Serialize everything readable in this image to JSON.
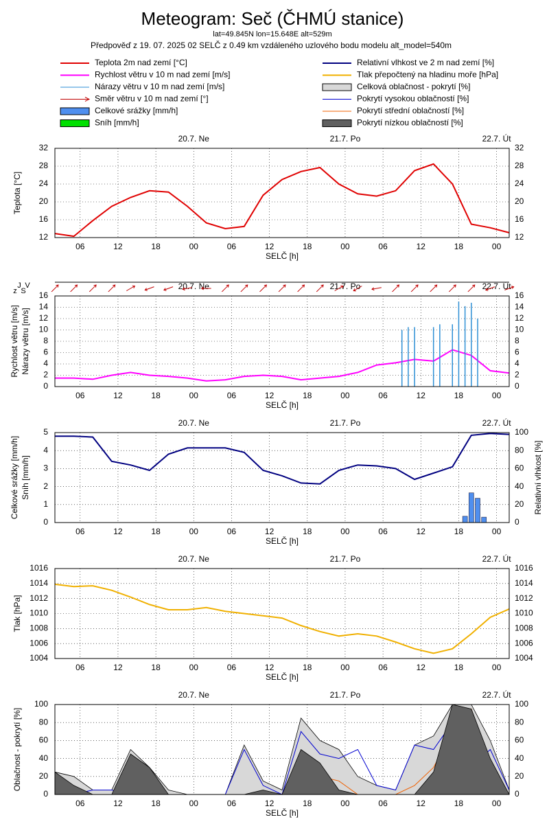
{
  "header": {
    "title": "Meteogram: Seč (ČHMÚ stanice)",
    "location": "lat=49.845N lon=15.648E alt=529m",
    "forecast": "Předpověď z 19. 07. 2025 02 SELČ z 0.49 km vzdáleného uzlového bodu modelu alt_model=540m"
  },
  "time_axis": {
    "xlim": [
      2,
      74
    ],
    "xlabel": "SELČ [h]",
    "xticks": [
      {
        "value": 6,
        "label": "06"
      },
      12,
      18,
      {
        "value": 24,
        "label": "00"
      },
      {
        "value": 30,
        "label": "06"
      },
      {
        "value": 36,
        "label": "12"
      },
      {
        "value": 42,
        "label": "18"
      },
      {
        "value": 48,
        "label": "00"
      },
      {
        "value": 54,
        "label": "06"
      },
      {
        "value": 60,
        "label": "12"
      },
      {
        "value": 66,
        "label": "18"
      },
      {
        "value": 72,
        "label": "00"
      }
    ],
    "days": [
      {
        "value": 24,
        "label": "20.7. Ne"
      },
      {
        "value": 48,
        "label": "21.7. Po"
      },
      {
        "value": 72,
        "label": "22.7. Út"
      }
    ],
    "x": [
      2,
      5,
      8,
      11,
      14,
      17,
      20,
      23,
      26,
      29,
      32,
      35,
      38,
      41,
      44,
      47,
      50,
      53,
      56,
      59,
      62,
      65,
      68,
      71,
      74
    ]
  },
  "chart_data": [
    {
      "type": "line",
      "ylabel": "Teplota [°C]",
      "ylim": [
        12,
        32
      ],
      "yticks": [
        12,
        16,
        20,
        24,
        28,
        32
      ],
      "mirror_y": true,
      "grid": true,
      "series": [
        {
          "name": "Teplota 2m nad zemí [°C]",
          "kind": "line",
          "color": "#e00000",
          "values": [
            12.9,
            12.3,
            15.8,
            19,
            21,
            22.5,
            22.2,
            19,
            15.3,
            14,
            14.5,
            21.5,
            25,
            26.8,
            27.7,
            24,
            21.8,
            21.3,
            22.5,
            27,
            28.5,
            24,
            15,
            14.2,
            13.1
          ]
        }
      ]
    },
    {
      "type": "line",
      "ylabel": "Rychlost větru [m/s]",
      "ylabel2": "Nárazy větru [m/s]",
      "direction_label": [
        "z",
        "J",
        "S",
        "V"
      ],
      "ylim": [
        0,
        16
      ],
      "yticks": [
        0,
        2,
        4,
        6,
        8,
        10,
        12,
        14,
        16
      ],
      "mirror_y": true,
      "grid": true,
      "series": [
        {
          "name": "Rychlost větru v 10 m nad zemí [m/s]",
          "kind": "line",
          "color": "#ff00ff",
          "values": [
            1.5,
            1.5,
            1.3,
            2,
            2.5,
            2,
            1.8,
            1.5,
            1,
            1.2,
            1.8,
            2,
            1.8,
            1.2,
            1.5,
            1.8,
            2.5,
            3.8,
            4.2,
            4.8,
            4.5,
            6.5,
            5.5,
            2.8,
            2.4
          ]
        },
        {
          "name": "Nárazy větru v 10 m nad zemí [m/s]",
          "kind": "spike",
          "color": "#2d8fd5",
          "x": [
            57,
            58,
            59,
            62,
            63,
            65,
            66,
            67,
            68,
            69
          ],
          "values": [
            10,
            10.5,
            10.5,
            10.5,
            11,
            11,
            15,
            14.2,
            14.8,
            12
          ]
        },
        {
          "name": "Směr větru v 10 m nad zemí [°]",
          "kind": "arrow",
          "color": "#c00000",
          "values": [
            225,
            225,
            225,
            225,
            240,
            70,
            70,
            80,
            90,
            225,
            225,
            225,
            225,
            225,
            225,
            240,
            60,
            80,
            225,
            225,
            225,
            225,
            225,
            70,
            250
          ]
        }
      ]
    },
    {
      "type": "line",
      "ylabel": "Celkové srážky [mm/h]",
      "ylabel2": "Sníh [mm/h]",
      "y2label": "Relativní vlhkost [%]",
      "ylim": [
        0,
        5
      ],
      "yticks": [
        0,
        1,
        2,
        3,
        4,
        5
      ],
      "y2lim": [
        0,
        100
      ],
      "y2ticks": [
        0,
        20,
        40,
        60,
        80,
        100
      ],
      "grid": true,
      "series": [
        {
          "name": "Celkové srážky [mm/h]",
          "kind": "bar",
          "color": "#4f8fef",
          "x": [
            67,
            68,
            69,
            70
          ],
          "values": [
            0.35,
            1.65,
            1.35,
            0.3
          ]
        },
        {
          "name": "Sníh [mm/h]",
          "kind": "bar",
          "color": "#00e000",
          "x": [
            67,
            68,
            69,
            70
          ],
          "values": [
            0,
            0,
            0,
            0
          ]
        },
        {
          "name": "Relativní vlhkost ve 2 m nad zemí [%]",
          "kind": "line",
          "axis": "y2",
          "color": "#000080",
          "values": [
            96,
            96,
            95,
            68,
            64,
            58,
            76,
            83,
            83,
            83,
            78,
            58,
            52,
            44,
            43,
            58,
            64,
            63,
            60,
            48,
            55,
            62,
            97,
            99,
            98
          ]
        }
      ]
    },
    {
      "type": "line",
      "ylabel": "Tlak [hPa]",
      "ylim": [
        1004,
        1016
      ],
      "yticks": [
        1004,
        1006,
        1008,
        1010,
        1012,
        1014,
        1016
      ],
      "mirror_y": true,
      "grid": true,
      "series": [
        {
          "name": "Tlak přepočtený na hladinu moře [hPa]",
          "kind": "line",
          "color": "#f0b000",
          "values": [
            1013.9,
            1013.6,
            1013.7,
            1013.1,
            1012.2,
            1011.2,
            1010.5,
            1010.5,
            1010.8,
            1010.3,
            1010,
            1009.7,
            1009.4,
            1008.4,
            1007.6,
            1007,
            1007.3,
            1007,
            1006.2,
            1005.3,
            1004.7,
            1005.3,
            1007.3,
            1009.5,
            1010.6
          ]
        }
      ]
    },
    {
      "type": "line",
      "ylabel": "Oblačnost - pokrytí [%]",
      "ylim": [
        0,
        100
      ],
      "yticks": [
        0,
        20,
        40,
        60,
        80,
        100
      ],
      "mirror_y": true,
      "grid": true,
      "series": [
        {
          "name": "Celková oblačnost - pokrytí [%]",
          "kind": "area",
          "color": "#d8d8d8",
          "values": [
            25,
            20,
            5,
            5,
            50,
            30,
            5,
            0,
            0,
            0,
            55,
            15,
            5,
            85,
            60,
            50,
            20,
            10,
            5,
            55,
            65,
            100,
            100,
            60,
            5
          ]
        },
        {
          "name": "Pokrytí vysokou oblačností [%]",
          "kind": "line",
          "color": "#0000d0",
          "values": [
            0,
            0,
            5,
            5,
            0,
            0,
            0,
            0,
            0,
            0,
            50,
            10,
            0,
            70,
            45,
            40,
            50,
            10,
            5,
            55,
            50,
            80,
            30,
            50,
            5
          ]
        },
        {
          "name": "Pokrytí střední oblačností [%]",
          "kind": "line",
          "color": "#f06000",
          "values": [
            20,
            0,
            0,
            0,
            0,
            0,
            0,
            0,
            0,
            0,
            0,
            0,
            0,
            40,
            20,
            15,
            0,
            0,
            0,
            10,
            30,
            70,
            95,
            30,
            0
          ]
        },
        {
          "name": "Pokrytí nízkou oblačností [%]",
          "kind": "area",
          "color": "#606060",
          "values": [
            25,
            10,
            0,
            0,
            45,
            30,
            0,
            0,
            0,
            0,
            0,
            5,
            0,
            50,
            35,
            5,
            0,
            0,
            0,
            0,
            25,
            100,
            95,
            40,
            0
          ]
        }
      ]
    }
  ]
}
